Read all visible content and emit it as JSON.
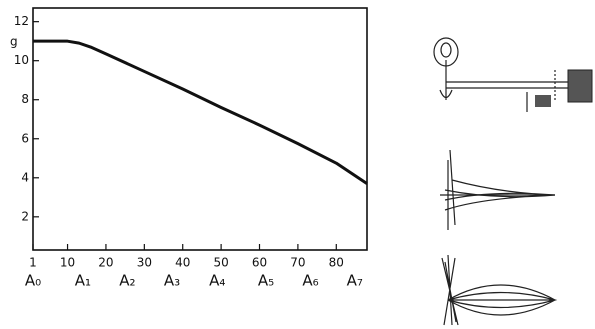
{
  "chart_data": {
    "type": "line",
    "y_label": "g",
    "x": [
      1,
      5,
      10,
      13,
      16,
      20,
      30,
      40,
      50,
      60,
      70,
      80,
      88
    ],
    "series": [
      {
        "name": null,
        "color": "#111111",
        "values": [
          11,
          11,
          11,
          10.9,
          10.7,
          10.35,
          9.45,
          8.55,
          7.6,
          6.7,
          5.75,
          4.75,
          3.7
        ]
      }
    ],
    "xlim": [
      1,
      88
    ],
    "xticks": [
      1,
      10,
      20,
      30,
      40,
      50,
      60,
      70,
      80
    ],
    "ylim": [
      0.3,
      12.7
    ],
    "yticks": [
      2,
      4,
      6,
      8,
      10,
      12
    ],
    "x_annotations": [
      {
        "label": "A₀",
        "x": 1
      },
      {
        "label": "A₁",
        "x": 14
      },
      {
        "label": "A₂",
        "x": 25.6
      },
      {
        "label": "A₃",
        "x": 37.2
      },
      {
        "label": "A₄",
        "x": 49
      },
      {
        "label": "A₅",
        "x": 61.7
      },
      {
        "label": "A₆",
        "x": 73.3
      },
      {
        "label": "A₇",
        "x": 84.8
      }
    ],
    "grid": false
  }
}
